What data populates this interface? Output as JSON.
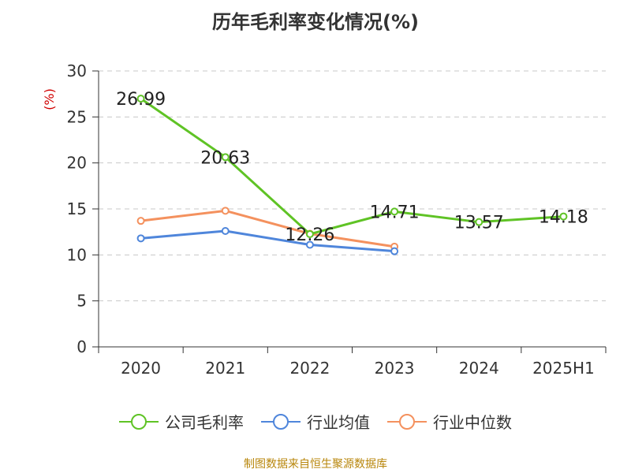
{
  "chart_data": {
    "type": "line",
    "title": "历年毛利率变化情况(%)",
    "ylabel": "(%)",
    "xlabel": "",
    "categories": [
      "2020",
      "2021",
      "2022",
      "2023",
      "2024",
      "2025H1"
    ],
    "ylim": [
      0,
      30
    ],
    "yticks": [
      0,
      5,
      10,
      15,
      20,
      25,
      30
    ],
    "grid": true,
    "legend_position": "bottom",
    "series": [
      {
        "name": "公司毛利率",
        "color": "#5fc325",
        "values": [
          26.99,
          20.63,
          12.26,
          14.71,
          13.57,
          14.18
        ],
        "show_labels": true
      },
      {
        "name": "行业均值",
        "color": "#4f86db",
        "values": [
          11.8,
          12.6,
          11.1,
          10.4,
          null,
          null
        ],
        "show_labels": false
      },
      {
        "name": "行业中位数",
        "color": "#f4915e",
        "values": [
          13.7,
          14.8,
          12.3,
          10.9,
          null,
          null
        ],
        "show_labels": false
      }
    ]
  },
  "source": "制图数据来自恒生聚源数据库"
}
